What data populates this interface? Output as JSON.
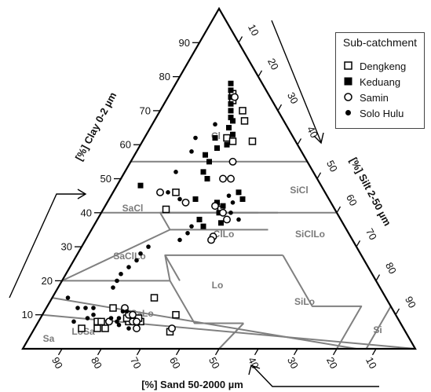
{
  "chart_data": {
    "type": "scatter",
    "subtype": "ternary",
    "axes": {
      "clay": {
        "label": "[%] Clay 0-2 µm",
        "ticks": [
          "10",
          "20",
          "30",
          "40",
          "50",
          "60",
          "70",
          "80",
          "90"
        ]
      },
      "silt": {
        "label": "[%] Silt 2-50 µm",
        "ticks": [
          "10",
          "20",
          "30",
          "40",
          "50",
          "60",
          "70",
          "80",
          "90"
        ]
      },
      "sand": {
        "label": "[%] Sand 50-2000 µm",
        "ticks": [
          "90",
          "80",
          "70",
          "60",
          "50",
          "40",
          "30",
          "20",
          "10"
        ]
      }
    },
    "texture_classes": [
      "Cl",
      "SiCl",
      "SaCl",
      "ClLo",
      "SiClLo",
      "SaClLo",
      "Lo",
      "SiLo",
      "SaLo",
      "LoSa",
      "Sa",
      "Si"
    ],
    "legend": {
      "title": "Sub-catchment",
      "position": "top-right",
      "entries": [
        {
          "name": "Dengkeng",
          "marker": "open-square"
        },
        {
          "name": "Keduang",
          "marker": "filled-square"
        },
        {
          "name": "Samin",
          "marker": "open-circle"
        },
        {
          "name": "Solo Hulu",
          "marker": "filled-circle"
        }
      ]
    },
    "series": [
      {
        "name": "Dengkeng",
        "marker": "open-square",
        "points": [
          {
            "clay": 75,
            "silt": 16
          },
          {
            "clay": 73,
            "silt": 17
          },
          {
            "clay": 70,
            "silt": 21
          },
          {
            "clay": 67,
            "silt": 23
          },
          {
            "clay": 62,
            "silt": 21
          },
          {
            "clay": 61,
            "silt": 23
          },
          {
            "clay": 61,
            "silt": 28
          },
          {
            "clay": 46,
            "silt": 16
          },
          {
            "clay": 41,
            "silt": 16
          },
          {
            "clay": 41,
            "silt": 30
          },
          {
            "clay": 15,
            "silt": 26
          },
          {
            "clay": 12,
            "silt": 17
          },
          {
            "clay": 10,
            "silt": 34
          },
          {
            "clay": 8,
            "silt": 15
          },
          {
            "clay": 8,
            "silt": 16
          },
          {
            "clay": 8,
            "silt": 23
          },
          {
            "clay": 8,
            "silt": 26
          },
          {
            "clay": 6,
            "silt": 12
          },
          {
            "clay": 6,
            "silt": 16
          },
          {
            "clay": 6,
            "silt": 18
          },
          {
            "clay": 9,
            "silt": 22
          },
          {
            "clay": 9,
            "silt": 25
          },
          {
            "clay": 5,
            "silt": 35
          }
        ]
      },
      {
        "name": "Keduang",
        "marker": "filled-square",
        "points": [
          {
            "clay": 78,
            "silt": 14
          },
          {
            "clay": 76,
            "silt": 15
          },
          {
            "clay": 74,
            "silt": 16
          },
          {
            "clay": 72,
            "silt": 17
          },
          {
            "clay": 70,
            "silt": 18
          },
          {
            "clay": 68,
            "silt": 19
          },
          {
            "clay": 67,
            "silt": 20
          },
          {
            "clay": 65,
            "silt": 20
          },
          {
            "clay": 63,
            "silt": 22
          },
          {
            "clay": 62,
            "silt": 18
          },
          {
            "clay": 60,
            "silt": 22
          },
          {
            "clay": 59,
            "silt": 20
          },
          {
            "clay": 57,
            "silt": 18
          },
          {
            "clay": 55,
            "silt": 20
          },
          {
            "clay": 52,
            "silt": 20
          },
          {
            "clay": 50,
            "silt": 22
          },
          {
            "clay": 48,
            "silt": 6
          },
          {
            "clay": 46,
            "silt": 32
          },
          {
            "clay": 44,
            "silt": 34
          },
          {
            "clay": 43,
            "silt": 28
          },
          {
            "clay": 42,
            "silt": 30
          },
          {
            "clay": 40,
            "silt": 30
          },
          {
            "clay": 38,
            "silt": 26
          },
          {
            "clay": 37,
            "silt": 32
          },
          {
            "clay": 44,
            "silt": 22
          },
          {
            "clay": 36,
            "silt": 28
          }
        ]
      },
      {
        "name": "Samin",
        "marker": "open-circle",
        "points": [
          {
            "clay": 74,
            "silt": 17
          },
          {
            "clay": 55,
            "silt": 26
          },
          {
            "clay": 50,
            "silt": 26
          },
          {
            "clay": 50,
            "silt": 28
          },
          {
            "clay": 46,
            "silt": 12
          },
          {
            "clay": 43,
            "silt": 20
          },
          {
            "clay": 42,
            "silt": 28
          },
          {
            "clay": 40,
            "silt": 31
          },
          {
            "clay": 38,
            "silt": 33
          },
          {
            "clay": 33,
            "silt": 32
          },
          {
            "clay": 32,
            "silt": 32
          },
          {
            "clay": 10,
            "silt": 22
          },
          {
            "clay": 10,
            "silt": 23
          },
          {
            "clay": 8,
            "silt": 24
          },
          {
            "clay": 8,
            "silt": 25
          },
          {
            "clay": 6,
            "silt": 26
          },
          {
            "clay": 6,
            "silt": 35
          },
          {
            "clay": 12,
            "silt": 20
          },
          {
            "clay": 8,
            "silt": 18
          }
        ]
      },
      {
        "name": "Solo Hulu",
        "marker": "filled-circle",
        "points": [
          {
            "clay": 66,
            "silt": 16
          },
          {
            "clay": 62,
            "silt": 13
          },
          {
            "clay": 58,
            "silt": 14
          },
          {
            "clay": 52,
            "silt": 13
          },
          {
            "clay": 46,
            "silt": 14
          },
          {
            "clay": 44,
            "silt": 18
          },
          {
            "clay": 45,
            "silt": 30
          },
          {
            "clay": 43,
            "silt": 32
          },
          {
            "clay": 40,
            "silt": 33
          },
          {
            "clay": 38,
            "silt": 36
          },
          {
            "clay": 36,
            "silt": 25
          },
          {
            "clay": 34,
            "silt": 25
          },
          {
            "clay": 32,
            "silt": 24
          },
          {
            "clay": 30,
            "silt": 17
          },
          {
            "clay": 28,
            "silt": 16
          },
          {
            "clay": 26,
            "silt": 16
          },
          {
            "clay": 24,
            "silt": 15
          },
          {
            "clay": 22,
            "silt": 14
          },
          {
            "clay": 20,
            "silt": 14
          },
          {
            "clay": 18,
            "silt": 14
          },
          {
            "clay": 15,
            "silt": 4
          },
          {
            "clay": 12,
            "silt": 8
          },
          {
            "clay": 12,
            "silt": 10
          },
          {
            "clay": 12,
            "silt": 12
          },
          {
            "clay": 11,
            "silt": 20
          },
          {
            "clay": 11,
            "silt": 21
          },
          {
            "clay": 10,
            "silt": 13
          },
          {
            "clay": 9,
            "silt": 12
          },
          {
            "clay": 9,
            "silt": 18
          },
          {
            "clay": 9,
            "silt": 20
          },
          {
            "clay": 8,
            "silt": 9
          },
          {
            "clay": 8,
            "silt": 20
          },
          {
            "clay": 7,
            "silt": 21
          },
          {
            "clay": 6,
            "silt": 24
          }
        ]
      }
    ]
  },
  "colors": {
    "frame": "#000000",
    "boundary": "#808080",
    "label": "#7a7a7a"
  }
}
